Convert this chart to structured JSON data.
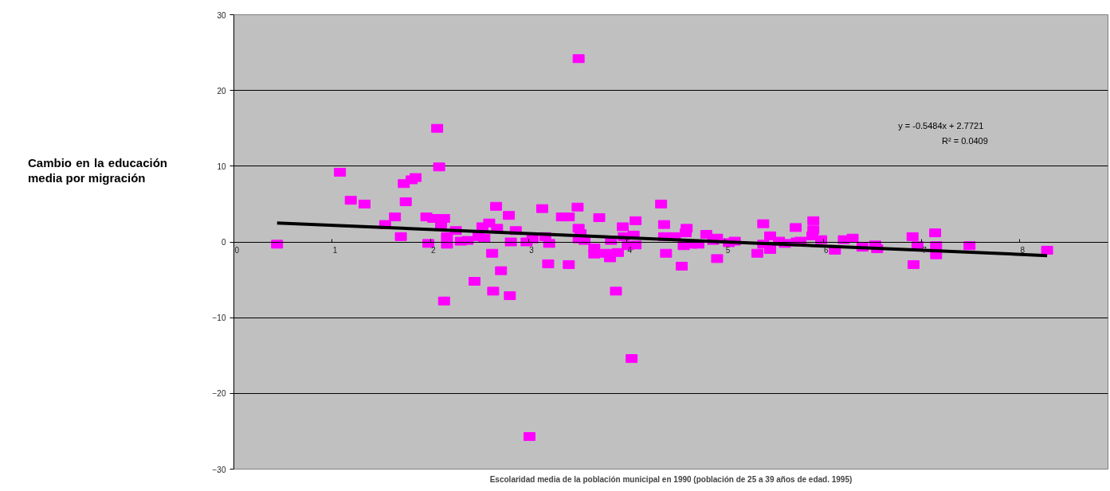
{
  "chart_data": {
    "type": "scatter",
    "xlabel": "Escolaridad media de la población municipal en 1990 (población de 25 a 39 años de edad. 1995)",
    "ylabel": "Cambio en la educación media por migración",
    "annotations": [
      "y = -0.5484x + 2.7721",
      "R² = 0.0409"
    ],
    "xlim": [
      0,
      8.9
    ],
    "ylim": [
      -30,
      30
    ],
    "xticks": [
      0,
      1,
      2,
      3,
      4,
      5,
      6,
      7,
      8
    ],
    "yticks": [
      -30,
      -20,
      -10,
      0,
      10,
      20,
      30
    ],
    "grid": "y",
    "series": [
      {
        "marker": "square",
        "color": "#ff00ff",
        "x": [
          0.44,
          1.08,
          1.19,
          1.33,
          1.54,
          1.64,
          1.7,
          1.73,
          1.75,
          1.81,
          1.85,
          1.96,
          1.98,
          2.03,
          2.07,
          2.09,
          2.11,
          2.14,
          2.14,
          2.17,
          2.17,
          2.26,
          2.31,
          2.38,
          2.45,
          2.49,
          2.53,
          2.55,
          2.6,
          2.63,
          2.64,
          2.67,
          2.68,
          2.72,
          2.8,
          2.81,
          2.82,
          2.87,
          2.98,
          3.01,
          3.04,
          3.14,
          3.17,
          3.2,
          3.21,
          3.34,
          3.41,
          3.41,
          3.51,
          3.5,
          3.51,
          3.51,
          3.53,
          3.57,
          3.67,
          3.67,
          3.72,
          3.79,
          3.83,
          3.84,
          3.89,
          3.91,
          3.96,
          3.97,
          4.01,
          4.05,
          4.07,
          4.09,
          4.09,
          4.35,
          4.38,
          4.4,
          4.38,
          4.49,
          4.56,
          4.58,
          4.6,
          4.61,
          4.66,
          4.73,
          4.81,
          4.88,
          4.92,
          4.92,
          5.04,
          5.1,
          5.33,
          5.39,
          5.39,
          5.46,
          5.46,
          5.55,
          5.61,
          5.72,
          5.73,
          5.77,
          5.9,
          5.9,
          5.89,
          5.98,
          6.12,
          6.21,
          6.3,
          6.4,
          6.53,
          6.55,
          6.91,
          6.92,
          6.96,
          7.14,
          7.15,
          7.15,
          7.49,
          8.28
        ],
        "values": [
          -0.3,
          9.2,
          5.5,
          5.0,
          2.3,
          3.3,
          0.7,
          7.7,
          5.3,
          8.2,
          8.5,
          3.3,
          -0.2,
          3.1,
          15.0,
          9.9,
          2.3,
          3.1,
          -7.8,
          0.7,
          -0.3,
          1.5,
          0.1,
          0.2,
          -5.2,
          0.7,
          2.0,
          0.5,
          2.5,
          -1.5,
          -6.5,
          4.7,
          1.8,
          -3.8,
          3.5,
          -7.1,
          0.0,
          1.5,
          0.0,
          -25.7,
          0.4,
          4.4,
          0.7,
          -2.9,
          -0.2,
          3.3,
          3.3,
          -3.0,
          24.2,
          4.6,
          1.8,
          0.4,
          1.1,
          0.2,
          -0.8,
          -1.6,
          3.2,
          -1.5,
          -2.1,
          0.2,
          -6.5,
          -1.4,
          2.0,
          0.7,
          -0.5,
          -15.4,
          0.9,
          2.8,
          -0.4,
          5.0,
          2.3,
          -1.5,
          0.7,
          0.7,
          -3.2,
          -0.5,
          1.2,
          1.8,
          -0.3,
          -0.3,
          1.0,
          0.2,
          0.5,
          -2.2,
          -0.1,
          0.1,
          -1.5,
          2.4,
          -0.3,
          0.8,
          -1.0,
          0.1,
          -0.2,
          1.9,
          0.0,
          0.1,
          2.8,
          1.6,
          0.8,
          0.3,
          -1.1,
          0.3,
          0.5,
          -0.7,
          -0.4,
          -0.9,
          0.7,
          -3.0,
          -0.5,
          1.2,
          -0.5,
          -1.7,
          -0.5,
          -1.1
        ]
      },
      {
        "type": "line",
        "color": "#000000",
        "x": [
          0.44,
          8.28
        ],
        "values": [
          2.5,
          -1.8
        ]
      }
    ]
  }
}
